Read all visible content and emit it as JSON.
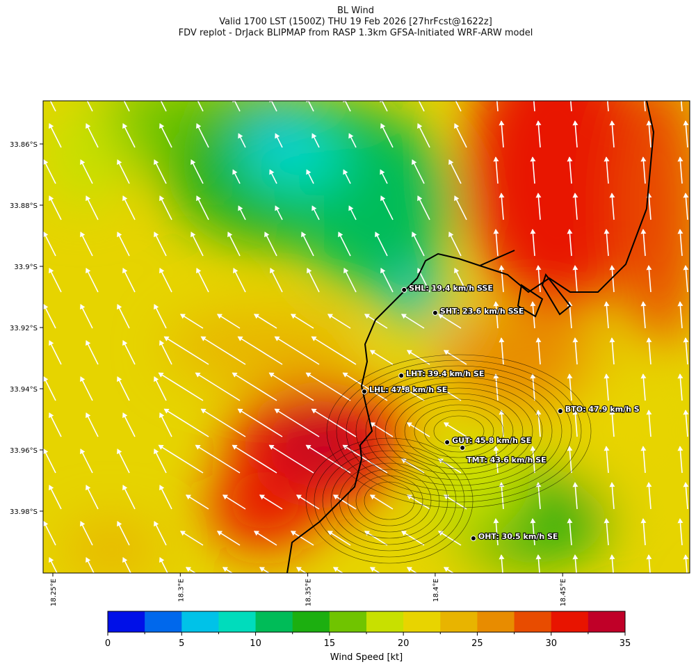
{
  "title": {
    "line1": "BL Wind",
    "line2": "Valid 1700 LST (1500Z) THU 19 Feb 2026 [27hrFcst@1622z]",
    "line3": "FDV replot - DrJack BLIPMAP from RASP 1.3km GFSA-Initiated WRF-ARW model"
  },
  "axes": {
    "lat_ticks": [
      "33.86°S",
      "33.88°S",
      "33.9°S",
      "33.92°S",
      "33.94°S",
      "33.96°S",
      "33.98°S"
    ],
    "lat_values": [
      33.86,
      33.88,
      33.9,
      33.92,
      33.94,
      33.96,
      33.98
    ],
    "lon_ticks": [
      "18.25°E",
      "18.3°E",
      "18.35°E",
      "18.4°E",
      "18.45°E"
    ],
    "lon_values": [
      18.25,
      18.3,
      18.35,
      18.4,
      18.45
    ]
  },
  "stations": [
    {
      "label": "SHL: 19.4 km/h SSE",
      "lat": 33.9077,
      "lon": 18.3878
    },
    {
      "label": "SHT: 23.6 km/h SSE",
      "lat": 33.9152,
      "lon": 18.4
    },
    {
      "label": "LHT: 39.4 km/h SE",
      "lat": 33.9357,
      "lon": 18.3867
    },
    {
      "label": "LHL: 47.8 km/h SE",
      "lat": 33.9409,
      "lon": 18.3722
    },
    {
      "label": "BTO: 47.9 km/h S",
      "lat": 33.9473,
      "lon": 18.4491
    },
    {
      "label": "GUT: 45.8 km/h SE",
      "lat": 33.9575,
      "lon": 18.4047
    },
    {
      "label": "TMT: 43.6 km/h SE",
      "lat": 33.9593,
      "lon": 18.4107
    },
    {
      "label": "OHT: 30.5 km/h SE",
      "lat": 33.9889,
      "lon": 18.415
    }
  ],
  "colorbar": {
    "label": "Wind Speed [kt]",
    "ticks": [
      "0",
      "5",
      "10",
      "15",
      "20",
      "25",
      "30",
      "35"
    ],
    "range": [
      0,
      35
    ],
    "colors": [
      "#0010e8",
      "#0068ec",
      "#00c2e8",
      "#00dcbc",
      "#00bc58",
      "#1caf10",
      "#70c400",
      "#c8e000",
      "#e8d400",
      "#e8b400",
      "#e88c00",
      "#e84c00",
      "#e81400",
      "#c00028"
    ]
  }
}
